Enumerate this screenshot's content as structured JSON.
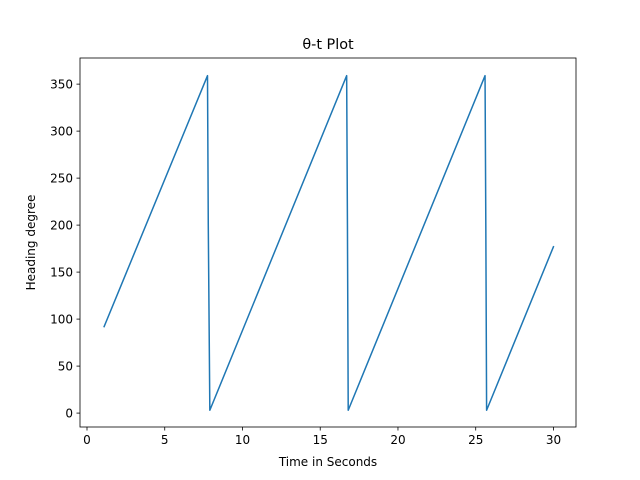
{
  "chart_data": {
    "type": "line",
    "title": "θ-t Plot",
    "xlabel": "Time in Seconds",
    "ylabel": "Heading degree",
    "xlim": [
      -0.45,
      31.45
    ],
    "ylim": [
      -14.8,
      377.8
    ],
    "xticks": [
      0,
      5,
      10,
      15,
      20,
      25,
      30
    ],
    "yticks": [
      0,
      50,
      100,
      150,
      200,
      250,
      300,
      350
    ],
    "grid": false,
    "series": [
      {
        "color": "#1f77b4",
        "x": [
          1.1,
          7.75,
          7.8,
          7.9,
          16.7,
          16.75,
          16.8,
          25.6,
          25.65,
          25.7,
          30.0
        ],
        "y": [
          92,
          359,
          200,
          3,
          359,
          200,
          3,
          359,
          200,
          3,
          177
        ]
      }
    ]
  }
}
